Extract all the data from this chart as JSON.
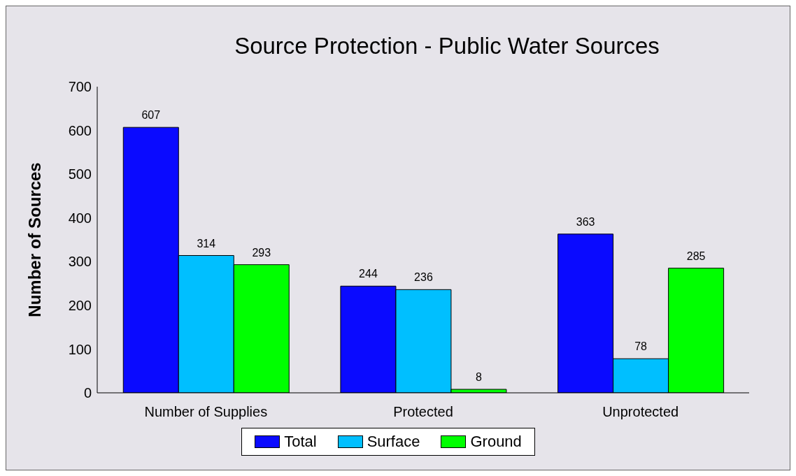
{
  "chart_data": {
    "type": "bar",
    "title": "Source Protection - Public Water Sources",
    "ylabel": "Number of Sources",
    "categories": [
      "Number of Supplies",
      "Protected",
      "Unprotected"
    ],
    "series": [
      {
        "name": "Total",
        "color": "#0a0aff",
        "values": [
          607,
          244,
          363
        ]
      },
      {
        "name": "Surface",
        "color": "#00bfff",
        "values": [
          314,
          236,
          78
        ]
      },
      {
        "name": "Ground",
        "color": "#00ff00",
        "values": [
          293,
          8,
          285
        ]
      }
    ],
    "ylim": [
      0,
      700
    ],
    "yticks": [
      0,
      100,
      200,
      300,
      400,
      500,
      600,
      700
    ],
    "grid": false,
    "legend": "bottom",
    "data_labels": true
  }
}
